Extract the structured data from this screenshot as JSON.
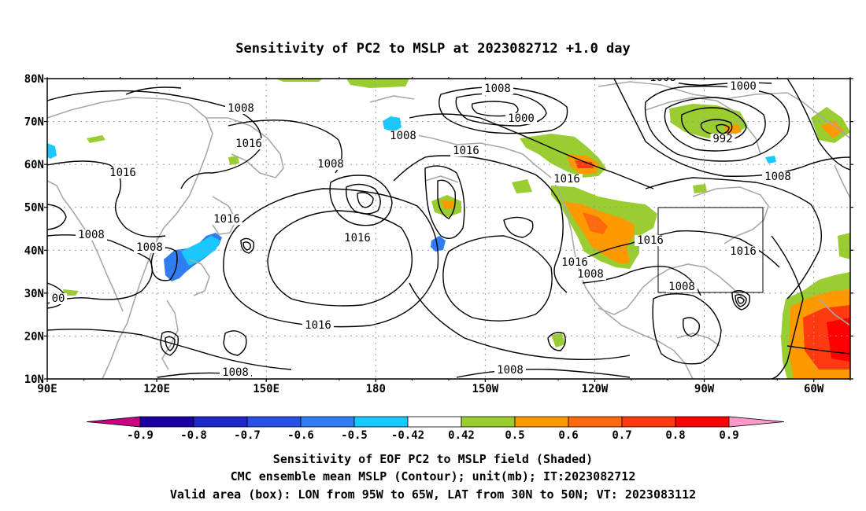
{
  "title": "Sensitivity of PC2 to MSLP at 2023082712 +1.0 day",
  "map": {
    "lat_range": [
      10,
      80
    ],
    "lon_range": [
      90,
      310
    ],
    "lat_ticks": [
      "80N",
      "70N",
      "60N",
      "50N",
      "40N",
      "30N",
      "20N",
      "10N"
    ],
    "lon_ticks": [
      "90E",
      "120E",
      "150E",
      "180",
      "150W",
      "120W",
      "90W",
      "60W"
    ],
    "grid": "dotted",
    "box": {
      "lon_from": "95W",
      "lon_to": "65W",
      "lat_from": "30N",
      "lat_to": "50N"
    },
    "contour_labels": [
      "1008",
      "1008",
      "1008",
      "1016",
      "1016",
      "1016",
      "1008",
      "1016",
      "1008",
      "1016",
      "1008",
      "1000",
      "1016",
      "1016",
      "1008",
      "1016",
      "1016",
      "1008",
      "1008",
      "1008",
      "1000",
      "992",
      "1008",
      "1016",
      "00",
      "1008"
    ],
    "shaded_field": "sensitivity",
    "colors": {
      "coast": "#a8a8a8",
      "contour": "#000000",
      "grid": "#9a9a9a"
    }
  },
  "colorbar": {
    "labels": [
      "-0.9",
      "-0.8",
      "-0.7",
      "-0.6",
      "-0.5",
      "-0.42",
      "0.42",
      "0.5",
      "0.6",
      "0.7",
      "0.8",
      "0.9"
    ],
    "colors": [
      "#1a00a0",
      "#1e28c8",
      "#2850e6",
      "#2f7df0",
      "#19c8ff",
      "#ffffff",
      "#9acd32",
      "#ff9900",
      "#ff6a10",
      "#ff3a10",
      "#ff0000"
    ],
    "under_color": "#c80082",
    "over_color": "#ff99cc"
  },
  "footer": {
    "line1": "Sensitivity of EOF PC2 to MSLP field (Shaded)",
    "line2": "CMC ensemble mean MSLP (Contour); unit(mb); IT:2023082712",
    "line3": "Valid area (box): LON from 95W to 65W, LAT from 30N to 50N; VT: 2023083112"
  }
}
